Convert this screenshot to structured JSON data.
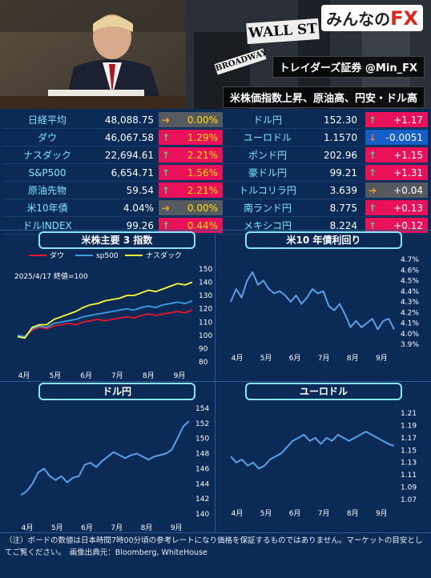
{
  "header": {
    "brand_prefix": "みんなの",
    "brand_fx": "FX",
    "sign_wall": "WALL ST",
    "sign_broad": "BROADWAY",
    "account": "トレイダーズ証券 @Min_FX",
    "headline": "米株価指数上昇、原油高、円安・ドル高"
  },
  "ticker": {
    "left": [
      {
        "name": "日経平均",
        "value": "48,088.75",
        "dir": "flat",
        "change": "0.00%"
      },
      {
        "name": "ダウ",
        "value": "46,067.58",
        "dir": "up",
        "change": "1.29%"
      },
      {
        "name": "ナスダック",
        "value": "22,694.61",
        "dir": "up",
        "change": "2.21%"
      },
      {
        "name": "S&P500",
        "value": "6,654.71",
        "dir": "up",
        "change": "1.56%"
      },
      {
        "name": "原油先物",
        "value": "59.54",
        "dir": "up",
        "change": "2.21%"
      },
      {
        "name": "米10年債",
        "value": "4.04%",
        "dir": "flat",
        "change": "0.00%"
      },
      {
        "name": "ドルINDEX",
        "value": "99.26",
        "dir": "up",
        "change": "0.44%"
      }
    ],
    "right": [
      {
        "name": "ドル円",
        "value": "152.30",
        "dir": "up",
        "change": "+1.17"
      },
      {
        "name": "ユーロドル",
        "value": "1.1570",
        "dir": "down",
        "change": "-0.0051"
      },
      {
        "name": "ポンド円",
        "value": "202.96",
        "dir": "up",
        "change": "+1.15"
      },
      {
        "name": "豪ドル円",
        "value": "99.21",
        "dir": "up",
        "change": "+1.31"
      },
      {
        "name": "トルコリラ円",
        "value": "3.639",
        "dir": "flat",
        "change": "+0.04"
      },
      {
        "name": "南ランド円",
        "value": "8.775",
        "dir": "up",
        "change": "+0.13"
      },
      {
        "name": "メキシコ円",
        "value": "8.224",
        "dir": "up",
        "change": "+0.12"
      }
    ]
  },
  "colors": {
    "up": "#e8115a",
    "down": "#1560c8",
    "flat": "#555a60",
    "line": "#5aa0e6"
  },
  "chart_data": [
    {
      "type": "line",
      "title": "米株主要 3 指数",
      "annotation": "2025/4/17 終値=100",
      "x_labels": [
        "4月",
        "5月",
        "6月",
        "7月",
        "8月",
        "9月"
      ],
      "ylim": [
        80,
        150
      ],
      "yticks": [
        80,
        90,
        100,
        110,
        120,
        130,
        140,
        150
      ],
      "legend": "top",
      "series": [
        {
          "name": "ダウ",
          "color": "#e8182c",
          "values": [
            100,
            99,
            104,
            106,
            105,
            107,
            108,
            109,
            108,
            110,
            111,
            112,
            111,
            112,
            113,
            114,
            113,
            115,
            116,
            115,
            116,
            117,
            118,
            117,
            119
          ]
        },
        {
          "name": "sp500",
          "color": "#3a9fe8",
          "values": [
            100,
            99,
            105,
            107,
            106,
            109,
            110,
            111,
            112,
            114,
            115,
            116,
            117,
            118,
            119,
            120,
            119,
            121,
            122,
            121,
            123,
            124,
            125,
            124,
            126
          ]
        },
        {
          "name": "ナスダック",
          "color": "#ffff33",
          "values": [
            99,
            98,
            106,
            108,
            108,
            112,
            114,
            116,
            118,
            121,
            123,
            124,
            126,
            127,
            128,
            130,
            130,
            132,
            134,
            133,
            135,
            137,
            139,
            138,
            140
          ]
        }
      ]
    },
    {
      "type": "line",
      "title": "米10 年債利回り",
      "x_labels": [
        "4月",
        "5月",
        "6月",
        "7月",
        "8月",
        "9月"
      ],
      "ylim": [
        3.9,
        4.7
      ],
      "yticks": [
        "4.7%",
        "4.6%",
        "4.5%",
        "4.4%",
        "4.3%",
        "4.2%",
        "4.1%",
        "4.0%",
        "3.9%"
      ],
      "series": [
        {
          "name": "",
          "color": "#5aa0e6",
          "values": [
            4.3,
            4.42,
            4.34,
            4.5,
            4.58,
            4.46,
            4.5,
            4.42,
            4.38,
            4.4,
            4.36,
            4.3,
            4.36,
            4.28,
            4.34,
            4.42,
            4.38,
            4.4,
            4.26,
            4.22,
            4.28,
            4.18,
            4.06,
            4.12,
            4.06,
            4.1,
            4.14,
            4.04,
            4.12,
            4.14,
            4.04
          ]
        }
      ]
    },
    {
      "type": "line",
      "title": "ドル円",
      "x_labels": [
        "4月",
        "5月",
        "6月",
        "7月",
        "8月",
        "9月"
      ],
      "ylim": [
        140,
        154
      ],
      "yticks": [
        154,
        152,
        150,
        148,
        146,
        144,
        142,
        140
      ],
      "series": [
        {
          "name": "",
          "color": "#5aa0e6",
          "values": [
            142.5,
            143,
            144,
            145.5,
            146,
            145,
            144.5,
            145,
            144.2,
            144.8,
            145,
            146.5,
            146.8,
            146.2,
            147,
            147.6,
            148.2,
            147.8,
            147.4,
            147.8,
            148,
            147.6,
            147.2,
            147.6,
            147.8,
            148,
            148.5,
            150,
            151.6,
            152.3
          ]
        }
      ]
    },
    {
      "type": "line",
      "title": "ユーロドル",
      "x_labels": [
        "4月",
        "5月",
        "6月",
        "7月",
        "8月",
        "9月"
      ],
      "ylim": [
        1.07,
        1.21
      ],
      "yticks": [
        1.21,
        1.19,
        1.17,
        1.15,
        1.13,
        1.11,
        1.09,
        1.07
      ],
      "series": [
        {
          "name": "",
          "color": "#5aa0e6",
          "values": [
            1.14,
            1.13,
            1.135,
            1.125,
            1.13,
            1.12,
            1.125,
            1.135,
            1.14,
            1.145,
            1.155,
            1.165,
            1.17,
            1.175,
            1.165,
            1.17,
            1.16,
            1.17,
            1.165,
            1.175,
            1.17,
            1.165,
            1.17,
            1.175,
            1.18,
            1.175,
            1.17,
            1.165,
            1.16,
            1.157
          ]
        }
      ]
    }
  ],
  "note": "（注）ボードの数値は日本時間7時00分頃の参考レートになり価格を保証するものではありません。マーケットの目安としてご覧ください。　画像出典元：Bloomberg, WhiteHouse"
}
